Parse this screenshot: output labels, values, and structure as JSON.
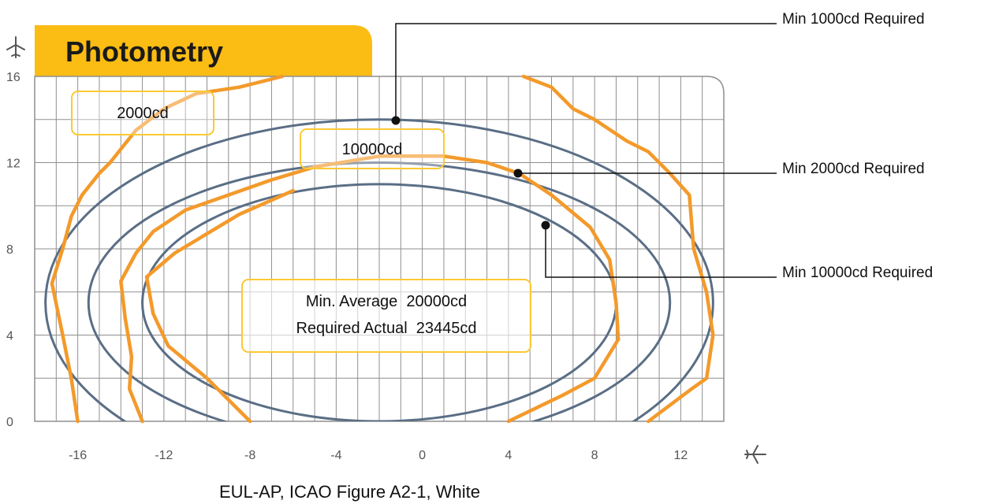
{
  "title": "Photometry",
  "caption": "EUL-AP, ICAO Figure A2-1, White",
  "colors": {
    "tab": "#fbbc13",
    "grid": "#8f8f8f",
    "ellipse": "#5a6e85",
    "measured": "#f39a2b",
    "box_border": "#fbc933",
    "callout_line": "#111111"
  },
  "icons": {
    "y_axis": "airplane-up-icon",
    "x_axis": "airplane-right-icon"
  },
  "chart_data": {
    "type": "line",
    "xlim": [
      -18,
      14
    ],
    "ylim": [
      0,
      16
    ],
    "x_ticks": [
      "-16",
      "-12",
      "-8",
      "-4",
      "0",
      "4",
      "8",
      "12"
    ],
    "y_ticks": [
      "0",
      "4",
      "8",
      "12",
      "16"
    ],
    "grid": true,
    "required_ellipses": [
      {
        "label": "Min 1000cd Required",
        "center": [
          -2,
          5.5
        ],
        "rx": 15.5,
        "ry": 8.5
      },
      {
        "label": "Min 2000cd Required",
        "center": [
          -2,
          5.5
        ],
        "rx": 13.5,
        "ry": 6.5
      },
      {
        "label": "Min 10000cd Required",
        "center": [
          -2,
          5.5
        ],
        "rx": 11.0,
        "ry": 5.5
      }
    ],
    "callouts": [
      {
        "text": "Min 1000cd Required",
        "point": [
          -1.5,
          14.0
        ]
      },
      {
        "text": "Min 2000cd Required",
        "point": [
          4.3,
          11.5
        ]
      },
      {
        "text": "Min 10000cd Required",
        "point": [
          5.7,
          9.2
        ]
      }
    ],
    "measured_contours": [
      {
        "name": "2000cd",
        "points": [
          [
            -16,
            0
          ],
          [
            -16.3,
            2
          ],
          [
            -16.7,
            4
          ],
          [
            -17.2,
            6.4
          ],
          [
            -16.7,
            8
          ],
          [
            -16.3,
            9.5
          ],
          [
            -15.8,
            10.5
          ],
          [
            -15,
            11.5
          ],
          [
            -14.5,
            12
          ],
          [
            -13.3,
            13.5
          ],
          [
            -12,
            14.5
          ],
          [
            -10.5,
            15.2
          ],
          [
            -8.5,
            15.5
          ],
          [
            -6.5,
            16
          ]
        ]
      },
      {
        "name": "2000cd",
        "points": [
          [
            4.7,
            16
          ],
          [
            6,
            15.5
          ],
          [
            7,
            14.5
          ],
          [
            8,
            14
          ],
          [
            9.5,
            13
          ],
          [
            10.5,
            12.5
          ],
          [
            11.5,
            11.5
          ],
          [
            12.4,
            10.5
          ],
          [
            12.6,
            8
          ],
          [
            13.2,
            6
          ],
          [
            13.5,
            4
          ],
          [
            13.2,
            2
          ],
          [
            12.5,
            1.5
          ],
          [
            10.5,
            0
          ]
        ]
      },
      {
        "name": "10000cd",
        "points": [
          [
            -13,
            0
          ],
          [
            -13.6,
            1.5
          ],
          [
            -13.5,
            3
          ],
          [
            -13.8,
            4.8
          ],
          [
            -14,
            6.5
          ],
          [
            -13.3,
            7.8
          ],
          [
            -12.5,
            8.8
          ],
          [
            -11,
            9.8
          ],
          [
            -9,
            10.5
          ],
          [
            -7,
            11.2
          ],
          [
            -5,
            11.8
          ],
          [
            -2,
            12.3
          ],
          [
            1,
            12.3
          ],
          [
            3,
            12
          ],
          [
            4.5,
            11.5
          ],
          [
            6,
            10.5
          ],
          [
            7.8,
            9
          ],
          [
            8.7,
            7.5
          ],
          [
            9,
            5.5
          ],
          [
            9.1,
            3.8
          ],
          [
            8,
            2
          ],
          [
            6.5,
            1.2
          ],
          [
            4,
            0
          ]
        ]
      },
      {
        "name": "10000cd",
        "points": [
          [
            -8,
            0
          ],
          [
            -10,
            2
          ],
          [
            -11.8,
            3.5
          ],
          [
            -12.5,
            5
          ],
          [
            -12.8,
            6.7
          ],
          [
            -11.5,
            7.8
          ],
          [
            -10,
            8.7
          ],
          [
            -8.5,
            9.6
          ],
          [
            -6,
            10.7
          ]
        ]
      }
    ],
    "annotations": [
      {
        "text": "2000cd",
        "x": -13.7,
        "y": 14.3
      },
      {
        "text": "10000cd",
        "x": -1.2,
        "y": 12.5
      },
      {
        "text": "Min. Average  20000cd",
        "x": -1.9,
        "y": 5.6
      },
      {
        "text": "Required Actual  23445cd",
        "x": -1.9,
        "y": 4.0
      }
    ]
  }
}
